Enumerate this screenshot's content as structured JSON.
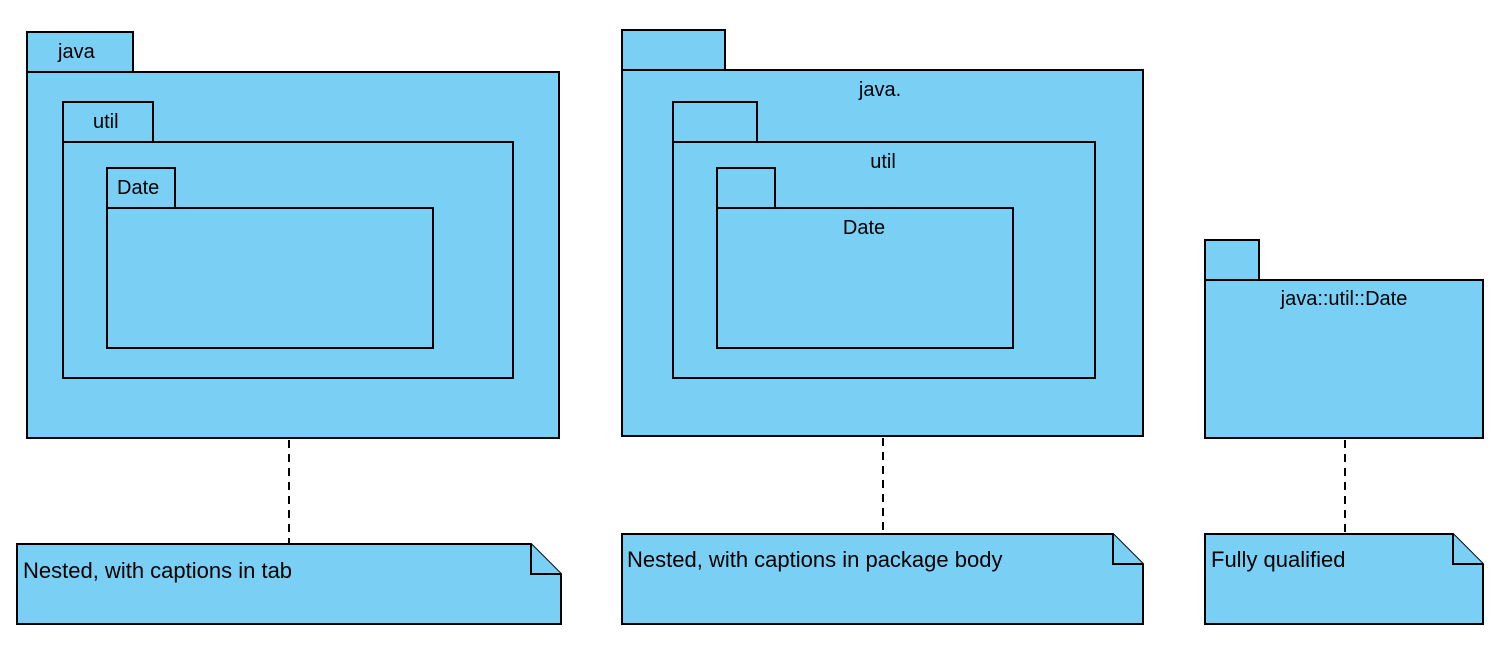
{
  "diagram": {
    "colors": {
      "fill": "#7acff5",
      "stroke": "#000000"
    },
    "example_tab": {
      "java": "java",
      "util": "util",
      "date": "Date",
      "note": "Nested, with captions in tab"
    },
    "example_body": {
      "java": "java.",
      "util": "util",
      "date": "Date",
      "note": "Nested, with captions in package body"
    },
    "example_qualified": {
      "name": "java::util::Date",
      "note": "Fully qualified"
    }
  }
}
